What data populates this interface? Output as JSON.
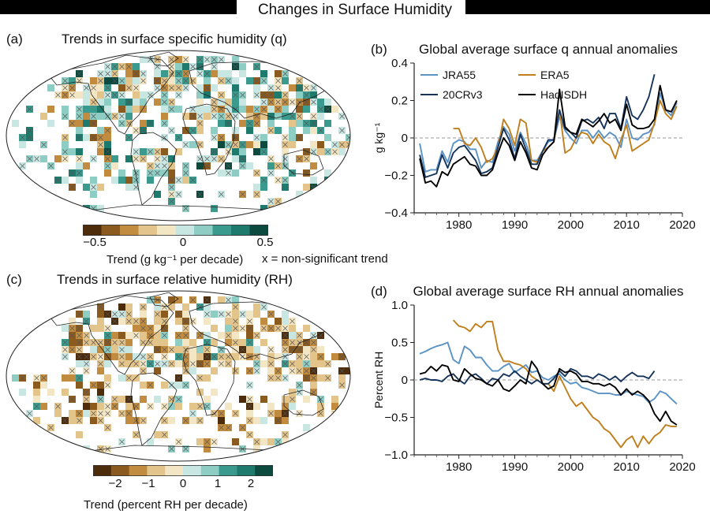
{
  "figure": {
    "title": "Changes in Surface Humidity"
  },
  "panel_a": {
    "label": "(a)",
    "title": "Trends in surface specific humidity (q)",
    "colorbar": {
      "ticks": [
        "−0.5",
        "0",
        "0.5"
      ],
      "label": "Trend (g kg⁻¹ per decade)",
      "note": "x = non-significant trend",
      "colors": [
        "#4d2c0c",
        "#8b5a1e",
        "#c18c3f",
        "#e3c48a",
        "#f3e6c5",
        "#c8e6e2",
        "#8ecdc4",
        "#3a9a8e",
        "#1f7a6e",
        "#0c4a40"
      ]
    }
  },
  "panel_c": {
    "label": "(c)",
    "title": "Trends in surface relative humidity (RH)",
    "colorbar": {
      "ticks": [
        "−2",
        "−1",
        "0",
        "1",
        "2"
      ],
      "label": "Trend (percent RH per decade)",
      "colors": [
        "#4d2c0c",
        "#8b5a1e",
        "#c18c3f",
        "#e3c48a",
        "#f3e6c5",
        "#c8e6e2",
        "#8ecdc4",
        "#3a9a8e",
        "#1f7a6e",
        "#0c4a40"
      ]
    }
  },
  "chart_data": [
    {
      "type": "line",
      "panel": "(b)",
      "title": "Global average surface q annual anomalies",
      "ylabel": "g kg⁻¹",
      "xlabel": "",
      "xlim": [
        1972,
        2020
      ],
      "ylim": [
        -0.4,
        0.4
      ],
      "xticks": [
        1980,
        1990,
        2000,
        2010,
        2020
      ],
      "yticks": [
        -0.4,
        -0.2,
        0,
        0.2,
        0.4
      ],
      "ytick_labels": [
        "−0.4",
        "−0.2",
        "0",
        "0.2",
        "0.4"
      ],
      "zero_line": true,
      "legend": "top-left",
      "series": [
        {
          "name": "JRA55",
          "color": "#5b93c4",
          "start": 1973,
          "values": [
            -0.03,
            -0.18,
            -0.17,
            -0.17,
            -0.07,
            -0.13,
            -0.03,
            -0.01,
            -0.02,
            -0.06,
            -0.06,
            -0.16,
            -0.12,
            -0.13,
            -0.02,
            0.06,
            0.02,
            -0.07,
            0.03,
            -0.03,
            -0.12,
            -0.12,
            -0.07,
            -0.02,
            -0.01,
            0.11,
            0.04,
            0.0,
            -0.03,
            0.04,
            0.04,
            0.0,
            0.04,
            0.0,
            0.03,
            0.01,
            -0.05,
            0.1,
            0.0,
            -0.01,
            0.02,
            0.03,
            0.07,
            0.24,
            0.15,
            0.12,
            0.19
          ]
        },
        {
          "name": "ERA5",
          "color": "#c07e1c",
          "start": 1979,
          "values": [
            0.05,
            0.05,
            -0.03,
            -0.04,
            0.0,
            -0.05,
            -0.13,
            -0.11,
            -0.05,
            0.1,
            0.05,
            -0.04,
            0.1,
            0.08,
            -0.12,
            -0.13,
            -0.07,
            -0.05,
            -0.02,
            0.15,
            -0.08,
            -0.06,
            0.0,
            0.03,
            0.02,
            -0.03,
            0.02,
            -0.02,
            -0.04,
            -0.11,
            -0.01,
            0.07,
            -0.07,
            -0.05,
            -0.03,
            -0.01,
            0.08,
            0.2,
            0.13,
            0.1,
            0.17
          ]
        },
        {
          "name": "20CRv3",
          "color": "#17355c",
          "start": 1973,
          "values": [
            -0.09,
            -0.21,
            -0.2,
            -0.19,
            -0.09,
            -0.16,
            -0.08,
            -0.05,
            -0.04,
            -0.08,
            -0.12,
            -0.19,
            -0.18,
            -0.16,
            -0.05,
            0.05,
            -0.01,
            -0.11,
            0.02,
            -0.06,
            -0.14,
            -0.14,
            -0.07,
            -0.01,
            -0.01,
            0.15,
            0.05,
            0.03,
            0.0,
            0.09,
            0.1,
            0.08,
            0.11,
            0.05,
            0.13,
            0.13,
            0.05,
            0.22,
            0.12,
            0.1,
            0.15,
            0.22,
            0.34
          ]
        },
        {
          "name": "HadISDH",
          "color": "#000000",
          "start": 1973,
          "values": [
            -0.11,
            -0.24,
            -0.23,
            -0.26,
            -0.18,
            -0.2,
            -0.14,
            -0.12,
            -0.1,
            -0.14,
            -0.15,
            -0.2,
            -0.2,
            -0.17,
            -0.08,
            0.0,
            -0.04,
            -0.12,
            -0.02,
            -0.08,
            -0.16,
            -0.17,
            -0.09,
            -0.05,
            -0.02,
            0.26,
            0.06,
            0.03,
            0.02,
            0.1,
            0.08,
            0.06,
            0.09,
            0.13,
            0.08,
            0.1,
            0.04,
            0.18,
            0.07,
            0.05,
            0.05,
            0.06,
            0.1,
            0.28,
            0.15,
            0.14,
            0.2
          ]
        }
      ]
    },
    {
      "type": "line",
      "panel": "(d)",
      "title": "Global average surface RH annual anomalies",
      "ylabel": "Percent RH",
      "xlabel": "",
      "xlim": [
        1972,
        2020
      ],
      "ylim": [
        -1.0,
        1.0
      ],
      "xticks": [
        1980,
        1990,
        2000,
        2010,
        2020
      ],
      "yticks": [
        -1.0,
        -0.5,
        0,
        0.5,
        1.0
      ],
      "ytick_labels": [
        "−1.0",
        "−0.5",
        "0",
        "0.5",
        "1.0"
      ],
      "zero_line": true,
      "series": [
        {
          "name": "JRA55",
          "color": "#5b93c4",
          "start": 1973,
          "values": [
            0.35,
            0.38,
            0.42,
            0.45,
            0.47,
            0.5,
            0.27,
            0.22,
            0.45,
            0.4,
            0.3,
            0.3,
            0.2,
            0.12,
            0.12,
            0.18,
            0.22,
            0.1,
            0.15,
            0.2,
            0.1,
            0.12,
            0.03,
            0.0,
            0.05,
            0.08,
            0.0,
            -0.05,
            -0.03,
            -0.1,
            -0.12,
            -0.15,
            -0.18,
            -0.18,
            -0.18,
            -0.2,
            -0.2,
            -0.15,
            -0.18,
            -0.2,
            -0.22,
            -0.3,
            -0.25,
            -0.15,
            -0.18,
            -0.25,
            -0.32
          ]
        },
        {
          "name": "ERA5",
          "color": "#c07e1c",
          "start": 1979,
          "values": [
            0.8,
            0.72,
            0.7,
            0.65,
            0.75,
            0.7,
            0.78,
            0.78,
            0.4,
            0.25,
            0.25,
            0.22,
            0.2,
            0.15,
            0.05,
            0.0,
            -0.05,
            -0.05,
            -0.15,
            0.05,
            -0.1,
            -0.25,
            -0.35,
            -0.3,
            -0.4,
            -0.5,
            -0.55,
            -0.65,
            -0.7,
            -0.8,
            -0.9,
            -0.8,
            -0.75,
            -0.9,
            -0.75,
            -0.85,
            -0.75,
            -0.7,
            -0.6,
            -0.62,
            -0.62
          ]
        },
        {
          "name": "20CRv3",
          "color": "#17355c",
          "start": 1973,
          "values": [
            0.0,
            0.02,
            0.0,
            0.0,
            -0.02,
            0.05,
            0.08,
            0.0,
            -0.05,
            0.05,
            0.08,
            0.02,
            -0.05,
            0.02,
            0.0,
            0.08,
            0.05,
            0.12,
            0.05,
            0.0,
            -0.05,
            0.0,
            -0.05,
            -0.05,
            0.02,
            0.12,
            0.05,
            0.15,
            0.12,
            0.05,
            0.05,
            0.02,
            0.08,
            0.05,
            0.0,
            0.05,
            -0.02,
            0.05,
            0.1,
            0.05,
            0.05,
            0.02,
            0.12
          ]
        },
        {
          "name": "HadISDH",
          "color": "#000000",
          "start": 1973,
          "values": [
            0.08,
            0.1,
            0.18,
            0.12,
            0.2,
            0.18,
            0.0,
            -0.02,
            0.15,
            0.08,
            0.02,
            0.0,
            -0.05,
            -0.08,
            0.0,
            -0.12,
            -0.15,
            -0.08,
            0.0,
            -0.05,
            0.25,
            0.15,
            -0.05,
            -0.12,
            -0.08,
            0.15,
            0.1,
            0.12,
            0.08,
            -0.02,
            -0.02,
            -0.05,
            -0.05,
            -0.08,
            -0.05,
            -0.1,
            -0.2,
            -0.12,
            -0.2,
            -0.15,
            -0.2,
            -0.28,
            -0.45,
            -0.55,
            -0.42,
            -0.55,
            -0.6
          ]
        }
      ]
    }
  ]
}
